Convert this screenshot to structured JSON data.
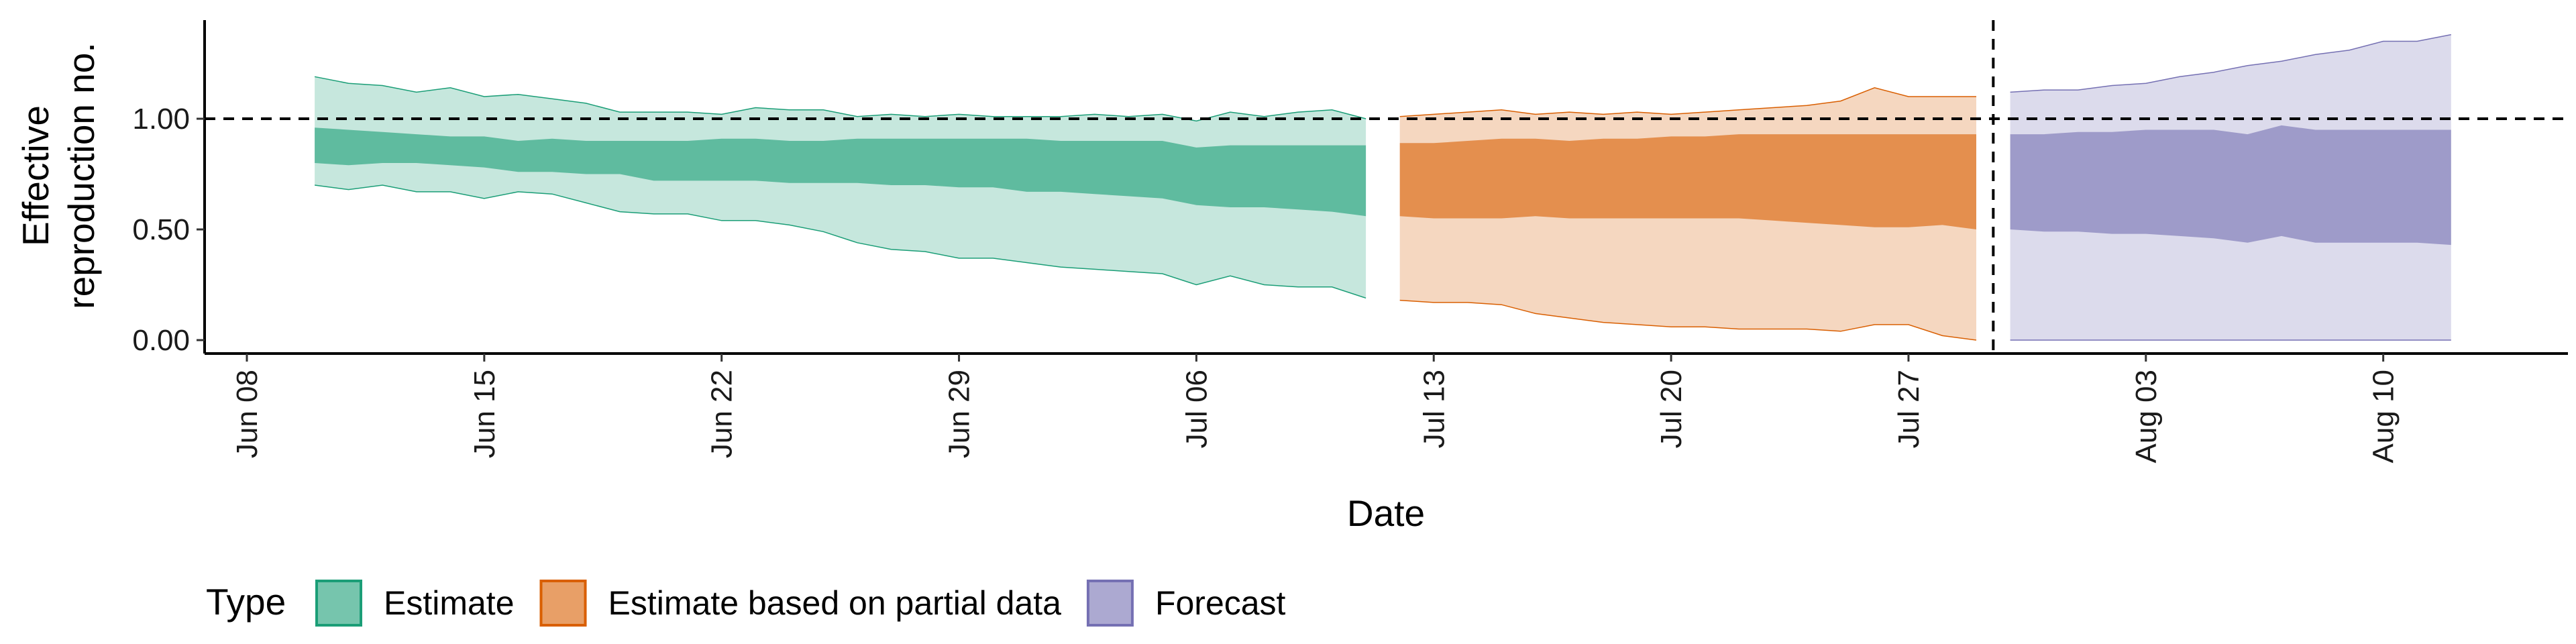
{
  "chart_data": {
    "type": "area",
    "xlabel": "Date",
    "ylabel_line1": "Effective",
    "ylabel_line2": "reproduction no.",
    "ylim": [
      0,
      1.45
    ],
    "y_ticks": [
      {
        "value": 0.0,
        "label": "0.00"
      },
      {
        "value": 0.5,
        "label": "0.50"
      },
      {
        "value": 1.0,
        "label": "1.00"
      }
    ],
    "x_range": [
      "2020-06-07",
      "2020-08-14"
    ],
    "x_ticks": [
      {
        "date": "2020-06-08",
        "label": "Jun 08"
      },
      {
        "date": "2020-06-15",
        "label": "Jun 15"
      },
      {
        "date": "2020-06-22",
        "label": "Jun 22"
      },
      {
        "date": "2020-06-29",
        "label": "Jun 29"
      },
      {
        "date": "2020-07-06",
        "label": "Jul 06"
      },
      {
        "date": "2020-07-13",
        "label": "Jul 13"
      },
      {
        "date": "2020-07-20",
        "label": "Jul 20"
      },
      {
        "date": "2020-07-27",
        "label": "Jul 27"
      },
      {
        "date": "2020-08-03",
        "label": "Aug 03"
      },
      {
        "date": "2020-08-10",
        "label": "Aug 10"
      }
    ],
    "reference_hline": 1.0,
    "reference_vline": "2020-07-29",
    "legend_title": "Type",
    "legend_position": "bottom",
    "series": [
      {
        "name": "Estimate",
        "fill": "#1b9e77",
        "dates": [
          "2020-06-10",
          "2020-06-11",
          "2020-06-12",
          "2020-06-13",
          "2020-06-14",
          "2020-06-15",
          "2020-06-16",
          "2020-06-17",
          "2020-06-18",
          "2020-06-19",
          "2020-06-20",
          "2020-06-21",
          "2020-06-22",
          "2020-06-23",
          "2020-06-24",
          "2020-06-25",
          "2020-06-26",
          "2020-06-27",
          "2020-06-28",
          "2020-06-29",
          "2020-06-30",
          "2020-07-01",
          "2020-07-02",
          "2020-07-03",
          "2020-07-04",
          "2020-07-05",
          "2020-07-06",
          "2020-07-07",
          "2020-07-08",
          "2020-07-09",
          "2020-07-10",
          "2020-07-11"
        ],
        "lower90": [
          0.7,
          0.68,
          0.7,
          0.67,
          0.67,
          0.64,
          0.67,
          0.66,
          0.62,
          0.58,
          0.57,
          0.57,
          0.54,
          0.54,
          0.52,
          0.49,
          0.44,
          0.41,
          0.4,
          0.37,
          0.37,
          0.35,
          0.33,
          0.32,
          0.31,
          0.3,
          0.25,
          0.29,
          0.25,
          0.24,
          0.24,
          0.19
        ],
        "upper90": [
          1.19,
          1.16,
          1.15,
          1.12,
          1.14,
          1.1,
          1.11,
          1.09,
          1.07,
          1.03,
          1.03,
          1.03,
          1.02,
          1.05,
          1.04,
          1.04,
          1.01,
          1.02,
          1.01,
          1.02,
          1.01,
          1.01,
          1.01,
          1.02,
          1.01,
          1.02,
          0.99,
          1.03,
          1.01,
          1.03,
          1.04,
          1.0
        ],
        "lower50": [
          0.8,
          0.79,
          0.8,
          0.8,
          0.79,
          0.78,
          0.76,
          0.76,
          0.75,
          0.75,
          0.72,
          0.72,
          0.72,
          0.72,
          0.71,
          0.71,
          0.71,
          0.7,
          0.7,
          0.69,
          0.69,
          0.67,
          0.67,
          0.66,
          0.65,
          0.64,
          0.61,
          0.6,
          0.6,
          0.59,
          0.58,
          0.56
        ],
        "upper50": [
          0.96,
          0.95,
          0.94,
          0.93,
          0.92,
          0.92,
          0.9,
          0.91,
          0.9,
          0.9,
          0.9,
          0.9,
          0.91,
          0.91,
          0.9,
          0.9,
          0.91,
          0.91,
          0.91,
          0.91,
          0.91,
          0.91,
          0.9,
          0.9,
          0.9,
          0.9,
          0.87,
          0.88,
          0.88,
          0.88,
          0.88,
          0.88
        ]
      },
      {
        "name": "Estimate based on partial data",
        "fill": "#d95f02",
        "dates": [
          "2020-07-12",
          "2020-07-13",
          "2020-07-14",
          "2020-07-15",
          "2020-07-16",
          "2020-07-17",
          "2020-07-18",
          "2020-07-19",
          "2020-07-20",
          "2020-07-21",
          "2020-07-22",
          "2020-07-23",
          "2020-07-24",
          "2020-07-25",
          "2020-07-26",
          "2020-07-27",
          "2020-07-28",
          "2020-07-29"
        ],
        "lower90": [
          0.18,
          0.17,
          0.17,
          0.16,
          0.12,
          0.1,
          0.08,
          0.07,
          0.06,
          0.06,
          0.05,
          0.05,
          0.05,
          0.04,
          0.07,
          0.07,
          0.02,
          0.0
        ],
        "upper90": [
          1.01,
          1.02,
          1.03,
          1.04,
          1.02,
          1.03,
          1.02,
          1.03,
          1.02,
          1.03,
          1.04,
          1.05,
          1.06,
          1.08,
          1.14,
          1.1,
          1.1,
          1.1
        ],
        "lower50": [
          0.56,
          0.55,
          0.55,
          0.55,
          0.56,
          0.55,
          0.55,
          0.55,
          0.55,
          0.55,
          0.55,
          0.54,
          0.53,
          0.52,
          0.51,
          0.51,
          0.52,
          0.5
        ],
        "upper50": [
          0.89,
          0.89,
          0.9,
          0.91,
          0.91,
          0.9,
          0.91,
          0.91,
          0.92,
          0.92,
          0.93,
          0.93,
          0.93,
          0.93,
          0.93,
          0.93,
          0.93,
          0.93
        ]
      },
      {
        "name": "Forecast",
        "fill": "#7570b3",
        "dates": [
          "2020-07-30",
          "2020-07-31",
          "2020-08-01",
          "2020-08-02",
          "2020-08-03",
          "2020-08-04",
          "2020-08-05",
          "2020-08-06",
          "2020-08-07",
          "2020-08-08",
          "2020-08-09",
          "2020-08-10",
          "2020-08-11",
          "2020-08-12"
        ],
        "lower90": [
          0.0,
          0.0,
          0.0,
          0.0,
          0.0,
          0.0,
          0.0,
          0.0,
          0.0,
          0.0,
          0.0,
          0.0,
          0.0,
          0.0
        ],
        "upper90": [
          1.12,
          1.13,
          1.13,
          1.15,
          1.16,
          1.19,
          1.21,
          1.24,
          1.26,
          1.29,
          1.31,
          1.35,
          1.35,
          1.38
        ],
        "lower50": [
          0.5,
          0.49,
          0.49,
          0.48,
          0.48,
          0.47,
          0.46,
          0.44,
          0.47,
          0.44,
          0.44,
          0.44,
          0.44,
          0.43
        ],
        "upper50": [
          0.93,
          0.93,
          0.94,
          0.94,
          0.95,
          0.95,
          0.95,
          0.93,
          0.97,
          0.95,
          0.95,
          0.95,
          0.95,
          0.95
        ]
      }
    ]
  }
}
